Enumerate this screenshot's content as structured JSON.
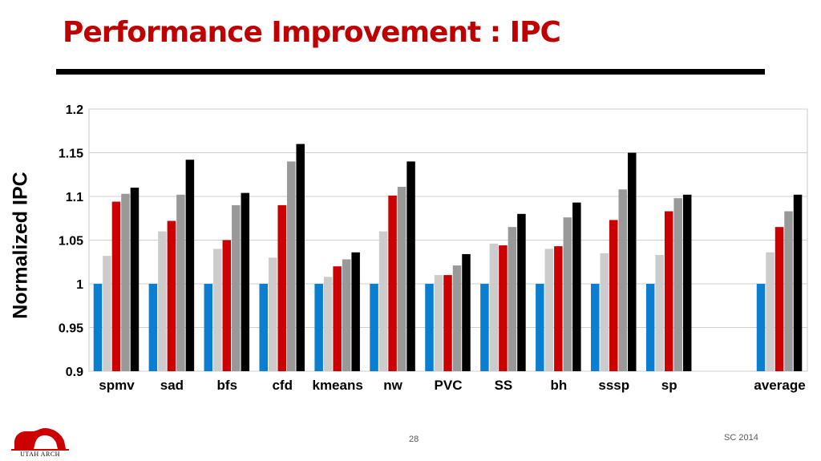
{
  "slide": {
    "title": "Performance Improvement : IPC",
    "number": "28",
    "footer": "SC 2014",
    "logo_text": "UTAH ARCH"
  },
  "chart_data": {
    "type": "bar",
    "title": "",
    "xlabel": "",
    "ylabel": "Normalized IPC",
    "ylim": [
      0.9,
      1.2
    ],
    "yticks": [
      "0.9",
      "0.95",
      "1",
      "1.05",
      "1.1",
      "1.15",
      "1.2"
    ],
    "grid": true,
    "legend": "none",
    "categories": [
      "spmv",
      "sad",
      "bfs",
      "cfd",
      "kmeans",
      "nw",
      "PVC",
      "SS",
      "bh",
      "sssp",
      "sp",
      "",
      "average"
    ],
    "series_colors": [
      "#0a7ed0",
      "#cccccc",
      "#cc0000",
      "#999999",
      "#000000"
    ],
    "series": [
      {
        "values": [
          1.0,
          1.0,
          1.0,
          1.0,
          1.0,
          1.0,
          1.0,
          1.0,
          1.0,
          1.0,
          1.0,
          null,
          1.0
        ]
      },
      {
        "values": [
          1.032,
          1.06,
          1.04,
          1.03,
          1.008,
          1.06,
          1.01,
          1.046,
          1.04,
          1.035,
          1.033,
          null,
          1.036
        ]
      },
      {
        "values": [
          1.094,
          1.072,
          1.05,
          1.09,
          1.02,
          1.101,
          1.01,
          1.044,
          1.043,
          1.073,
          1.083,
          null,
          1.065
        ]
      },
      {
        "values": [
          1.103,
          1.102,
          1.09,
          1.14,
          1.028,
          1.111,
          1.021,
          1.065,
          1.076,
          1.108,
          1.098,
          null,
          1.083
        ]
      },
      {
        "values": [
          1.11,
          1.142,
          1.104,
          1.16,
          1.036,
          1.14,
          1.034,
          1.08,
          1.093,
          1.15,
          1.102,
          null,
          1.102
        ]
      }
    ]
  }
}
